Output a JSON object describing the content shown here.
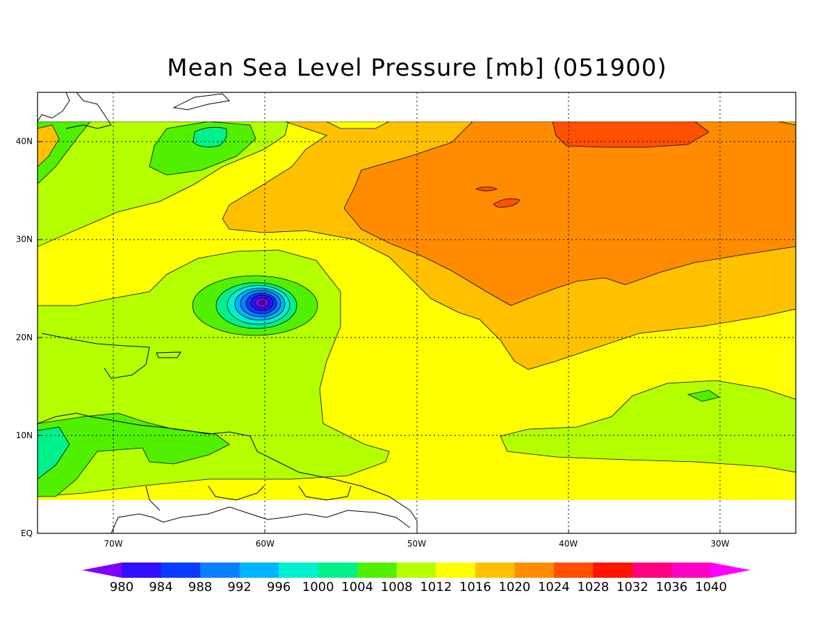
{
  "chart_data": {
    "type": "heatmap",
    "title": "Mean Sea Level Pressure [mb] (051900)",
    "xlabel": "",
    "ylabel": "",
    "variable_units": "mb",
    "xlim": [
      -75,
      -25
    ],
    "ylim": [
      0,
      45
    ],
    "x_ticks": [
      -70,
      -60,
      -50,
      -40,
      -30
    ],
    "x_tick_labels": [
      "70W",
      "60W",
      "50W",
      "40W",
      "30W"
    ],
    "y_ticks": [
      0,
      10,
      20,
      30,
      40
    ],
    "y_tick_labels": [
      "EQ",
      "10N",
      "20N",
      "30N",
      "40N"
    ],
    "grid": "dotted",
    "data_lat_range": [
      4,
      42
    ],
    "colorbar": {
      "levels": [
        980,
        984,
        988,
        992,
        996,
        1000,
        1004,
        1008,
        1012,
        1016,
        1020,
        1024,
        1028,
        1032,
        1036,
        1040
      ],
      "level_labels": [
        "980",
        "984",
        "988",
        "992",
        "996",
        "1000",
        "1004",
        "1008",
        "1012",
        "1016",
        "1020",
        "1024",
        "1028",
        "1032",
        "1036",
        "1040"
      ],
      "colors": [
        "#8000ff",
        "#3010ff",
        "#0a3cff",
        "#0a80ff",
        "#00b4ff",
        "#00f0d2",
        "#00f08c",
        "#50f000",
        "#b4ff00",
        "#ffff00",
        "#ffc000",
        "#ff8c00",
        "#ff5000",
        "#ff1400",
        "#ff0080",
        "#ff00c8",
        "#ff00ff"
      ]
    },
    "features": [
      {
        "name": "cyclone-low",
        "lon": -60.0,
        "lat": 23.5,
        "min_pressure_mb": 980
      },
      {
        "name": "subtropical-high",
        "lon": -38,
        "lat": 33,
        "max_pressure_mb": 1028
      }
    ]
  }
}
